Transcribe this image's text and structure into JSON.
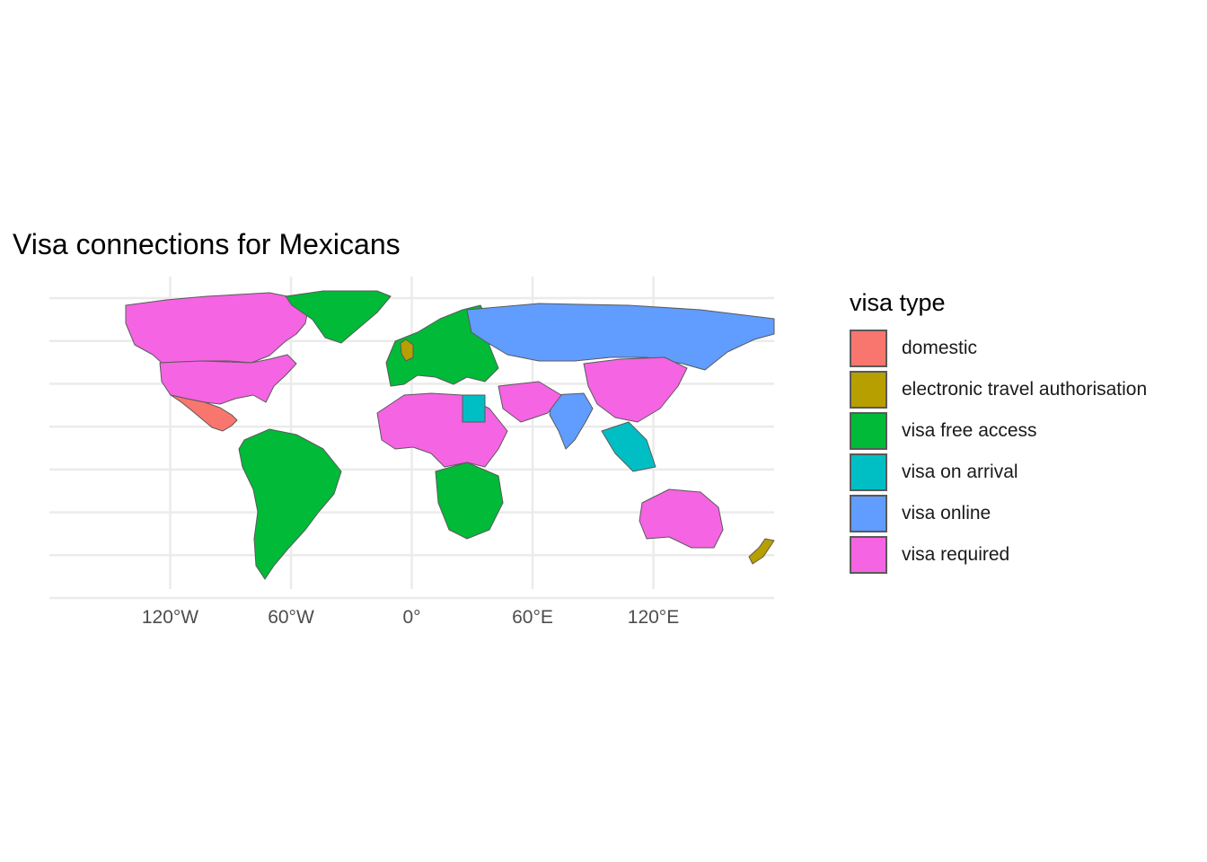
{
  "title": "Visa connections for Mexicans",
  "legend": {
    "title": "visa type",
    "items": [
      {
        "label": "domestic",
        "color": "#F8766D"
      },
      {
        "label": "electronic travel authorisation",
        "color": "#B79F00"
      },
      {
        "label": "visa free access",
        "color": "#00BA38"
      },
      {
        "label": "visa on arrival",
        "color": "#00BFC4"
      },
      {
        "label": "visa online",
        "color": "#619CFF"
      },
      {
        "label": "visa required",
        "color": "#F564E3"
      }
    ]
  },
  "axis": {
    "x_ticks": [
      "120°W",
      "60°W",
      "0°",
      "60°E",
      "120°E"
    ],
    "x_values": [
      -120,
      -60,
      0,
      60,
      120
    ],
    "lon_range": [
      -180,
      180
    ],
    "lat_range": [
      -58,
      84
    ]
  },
  "regions": [
    {
      "name": "Canada",
      "visa": "visa required"
    },
    {
      "name": "United States",
      "visa": "visa required"
    },
    {
      "name": "Mexico",
      "visa": "domestic"
    },
    {
      "name": "Greenland",
      "visa": "visa free access"
    },
    {
      "name": "South America",
      "visa": "visa free access"
    },
    {
      "name": "Europe",
      "visa": "visa free access"
    },
    {
      "name": "United Kingdom",
      "visa": "electronic travel authorisation"
    },
    {
      "name": "Russia",
      "visa": "visa online"
    },
    {
      "name": "China",
      "visa": "visa required"
    },
    {
      "name": "Australia",
      "visa": "visa required"
    },
    {
      "name": "India",
      "visa": "visa online"
    },
    {
      "name": "New Zealand",
      "visa": "electronic travel authorisation"
    },
    {
      "name": "Egypt",
      "visa": "visa on arrival"
    },
    {
      "name": "Southern Africa",
      "visa": "visa free access"
    }
  ]
}
